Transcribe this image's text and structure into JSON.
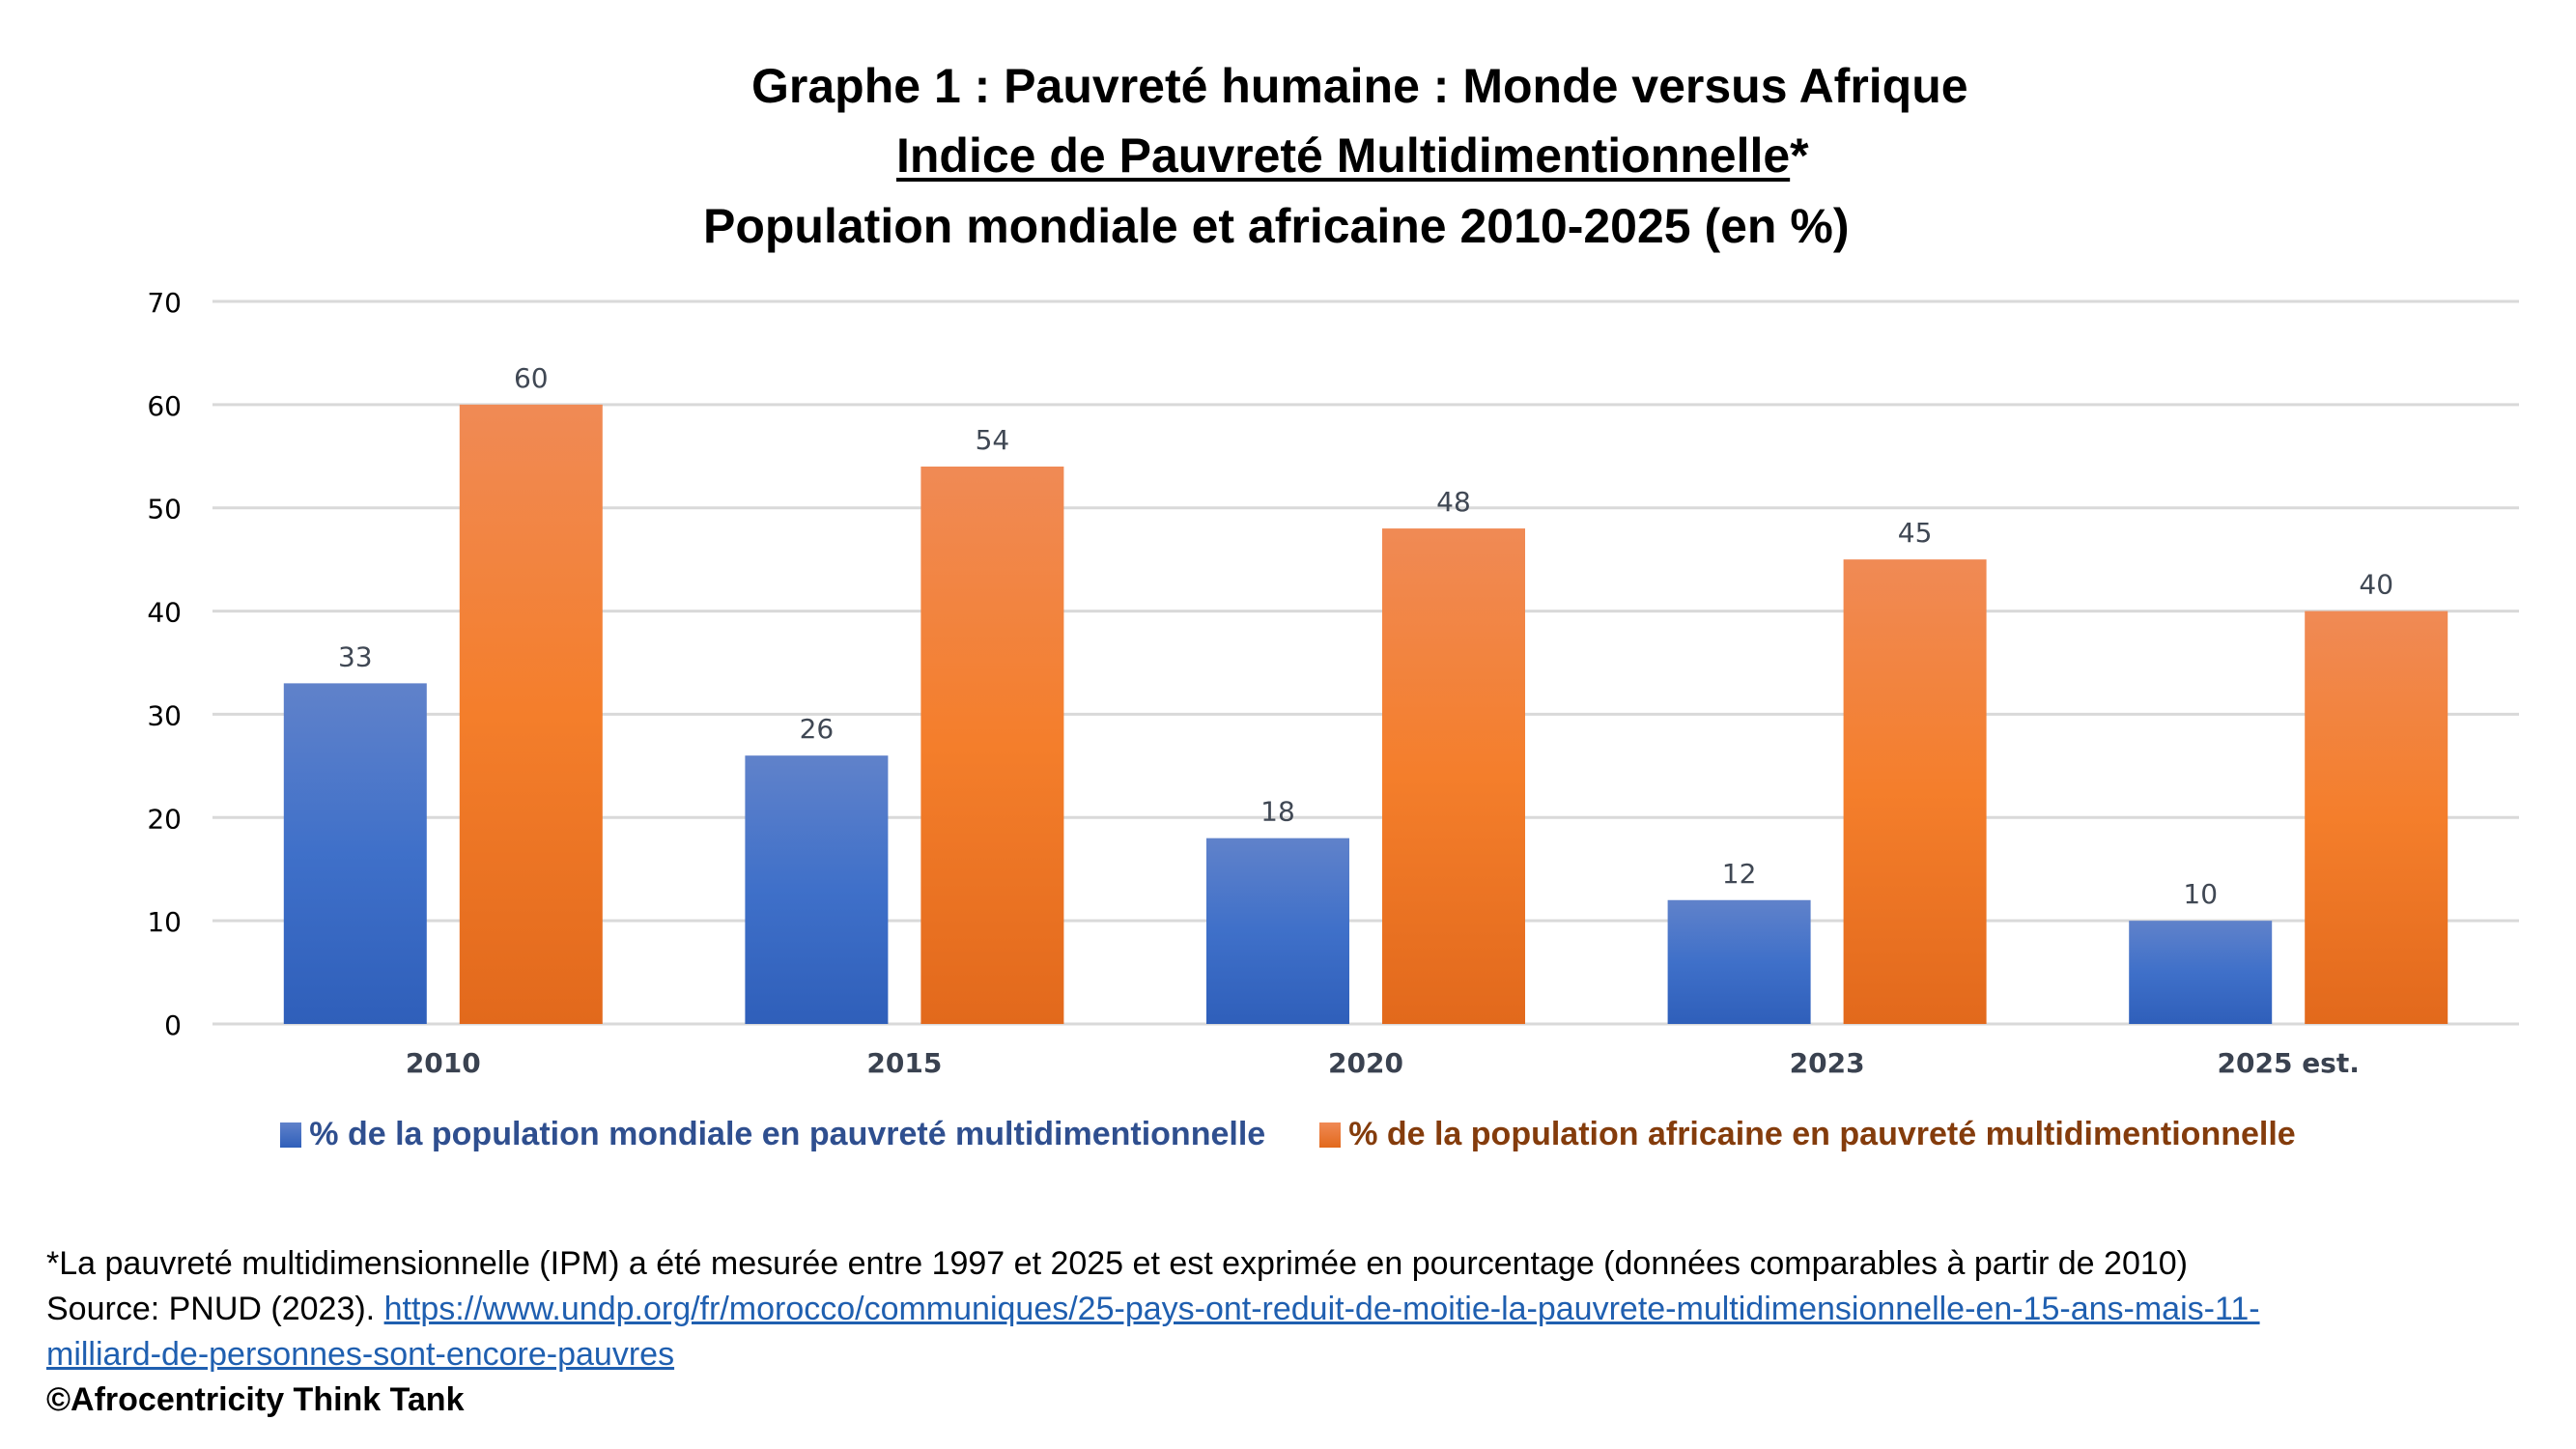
{
  "title": {
    "line1": "Graphe 1 : Pauvreté humaine : Monde versus Afrique",
    "line2_underlined": "Indice de Pauvreté Multidimentionnelle",
    "line2_suffix": "*",
    "line3": "Population mondiale et africaine 2010-2025 (en %)"
  },
  "chart_data": {
    "type": "bar",
    "title": "Graphe 1 : Pauvreté humaine : Monde versus Afrique — Indice de Pauvreté Multidimentionnelle* — Population mondiale et africaine 2010-2025 (en %)",
    "categories": [
      "2010",
      "2015",
      "2020",
      "2023",
      "2025 est."
    ],
    "series": [
      {
        "name": "% de la population mondiale en pauvreté multidimentionnelle",
        "color": "#4472c4",
        "values": [
          33,
          26,
          18,
          12,
          10
        ]
      },
      {
        "name": "% de la population africaine en pauvreté multidimentionnelle",
        "color": "#ed7d31",
        "values": [
          60,
          54,
          48,
          45,
          40
        ]
      }
    ],
    "xlabel": "",
    "ylabel": "",
    "ylim": [
      0,
      70
    ],
    "yticks": [
      0,
      10,
      20,
      30,
      40,
      50,
      60,
      70
    ],
    "grid": true,
    "data_labels": true,
    "legend_position": "bottom"
  },
  "legend": {
    "items": [
      {
        "label": "% de la population mondiale en pauvreté multidimentionnelle",
        "swatch_color": "#4472c4",
        "text_color": "#2f4f8f"
      },
      {
        "label": "% de la population africaine en pauvreté multidimentionnelle",
        "swatch_color": "#ed7d31",
        "text_color": "#843c0c"
      }
    ]
  },
  "notes": {
    "footnote": "*La pauvreté multidimensionnelle (IPM) a été mesurée entre 1997 et 2025 et est exprimée en pourcentage (données comparables à partir de 2010)",
    "source_prefix": "Source: PNUD (2023). ",
    "source_link_line1": "https://www.undp.org/fr/morocco/communiques/25-pays-ont-reduit-de-moitie-la-pauvrete-multidimensionnelle-en-15-ans-mais-11-",
    "source_link_line2": "milliard-de-personnes-sont-encore-pauvres",
    "copyright": "©Afrocentricity Think Tank"
  }
}
